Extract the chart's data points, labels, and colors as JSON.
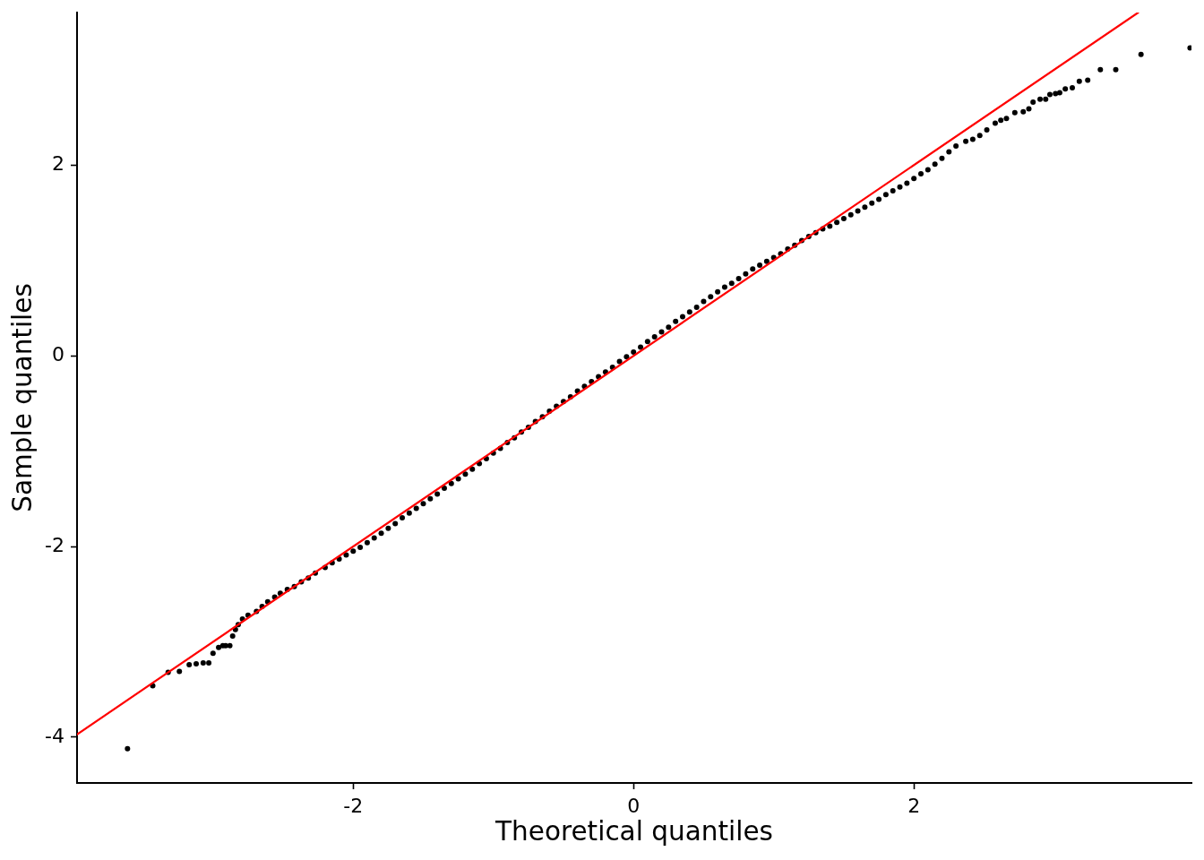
{
  "chart_data": {
    "type": "scatter",
    "xlabel": "Theoretical quantiles",
    "ylabel": "Sample quantiles",
    "xlim": [
      -3.97,
      3.98
    ],
    "ylim": [
      -4.48,
      3.6
    ],
    "xticks": [
      -2,
      0,
      2
    ],
    "yticks": [
      -4,
      -2,
      0,
      2
    ],
    "series": [
      {
        "color": "#000000",
        "marker": "circle",
        "x": [
          -3.61,
          -3.43,
          -3.32,
          -3.24,
          -3.17,
          -3.12,
          -3.07,
          -3.03,
          -3.0,
          -2.96,
          -2.93,
          -2.91,
          -2.88,
          -2.86,
          -2.84,
          -2.82,
          -2.79,
          -2.75,
          -2.69,
          -2.65,
          -2.61,
          -2.56,
          -2.52,
          -2.47,
          -2.42,
          -2.37,
          -2.32,
          -2.27,
          -2.2,
          -2.15,
          -2.1,
          -2.05,
          -2.0,
          -1.95,
          -1.9,
          -1.85,
          -1.8,
          -1.75,
          -1.7,
          -1.65,
          -1.6,
          -1.55,
          -1.5,
          -1.45,
          -1.4,
          -1.35,
          -1.3,
          -1.25,
          -1.2,
          -1.15,
          -1.1,
          -1.05,
          -1.0,
          -0.95,
          -0.9,
          -0.85,
          -0.8,
          -0.75,
          -0.7,
          -0.65,
          -0.6,
          -0.55,
          -0.5,
          -0.45,
          -0.4,
          -0.35,
          -0.3,
          -0.25,
          -0.2,
          -0.15,
          -0.1,
          -0.05,
          0.0,
          0.05,
          0.1,
          0.15,
          0.2,
          0.25,
          0.3,
          0.35,
          0.4,
          0.45,
          0.5,
          0.55,
          0.6,
          0.65,
          0.7,
          0.75,
          0.8,
          0.85,
          0.9,
          0.95,
          1.0,
          1.05,
          1.1,
          1.15,
          1.2,
          1.25,
          1.3,
          1.35,
          1.4,
          1.45,
          1.5,
          1.55,
          1.6,
          1.65,
          1.7,
          1.75,
          1.8,
          1.85,
          1.9,
          1.95,
          2.0,
          2.05,
          2.1,
          2.15,
          2.2,
          2.25,
          2.3,
          2.37,
          2.42,
          2.47,
          2.52,
          2.58,
          2.62,
          2.66,
          2.72,
          2.78,
          2.82,
          2.85,
          2.9,
          2.94,
          2.97,
          3.01,
          3.04,
          3.08,
          3.13,
          3.18,
          3.24,
          3.33,
          3.44,
          3.62,
          3.97
        ],
        "values": [
          -4.12,
          -3.46,
          -3.32,
          -3.31,
          -3.24,
          -3.23,
          -3.22,
          -3.22,
          -3.12,
          -3.06,
          -3.04,
          -3.04,
          -3.04,
          -2.94,
          -2.87,
          -2.82,
          -2.76,
          -2.72,
          -2.68,
          -2.63,
          -2.58,
          -2.53,
          -2.49,
          -2.45,
          -2.42,
          -2.37,
          -2.33,
          -2.28,
          -2.22,
          -2.17,
          -2.13,
          -2.09,
          -2.05,
          -2.01,
          -1.96,
          -1.91,
          -1.86,
          -1.81,
          -1.76,
          -1.7,
          -1.65,
          -1.6,
          -1.55,
          -1.5,
          -1.45,
          -1.39,
          -1.34,
          -1.29,
          -1.24,
          -1.19,
          -1.13,
          -1.08,
          -1.02,
          -0.97,
          -0.91,
          -0.86,
          -0.8,
          -0.75,
          -0.69,
          -0.64,
          -0.58,
          -0.53,
          -0.48,
          -0.43,
          -0.37,
          -0.32,
          -0.27,
          -0.22,
          -0.17,
          -0.12,
          -0.06,
          -0.01,
          0.04,
          0.09,
          0.15,
          0.2,
          0.25,
          0.3,
          0.36,
          0.41,
          0.46,
          0.51,
          0.57,
          0.62,
          0.67,
          0.72,
          0.76,
          0.81,
          0.86,
          0.91,
          0.95,
          0.99,
          1.03,
          1.07,
          1.12,
          1.16,
          1.21,
          1.25,
          1.29,
          1.33,
          1.36,
          1.4,
          1.44,
          1.48,
          1.52,
          1.56,
          1.6,
          1.64,
          1.69,
          1.73,
          1.77,
          1.81,
          1.86,
          1.91,
          1.95,
          2.01,
          2.07,
          2.14,
          2.2,
          2.25,
          2.27,
          2.31,
          2.37,
          2.44,
          2.47,
          2.49,
          2.55,
          2.56,
          2.59,
          2.66,
          2.69,
          2.69,
          2.74,
          2.75,
          2.76,
          2.8,
          2.81,
          2.88,
          2.89,
          3.0,
          3.0,
          3.16,
          3.23
        ]
      },
      {
        "type": "line",
        "color": "#ff0000",
        "x": [
          -3.97,
          3.6
        ],
        "values": [
          -3.97,
          3.6
        ]
      }
    ]
  }
}
